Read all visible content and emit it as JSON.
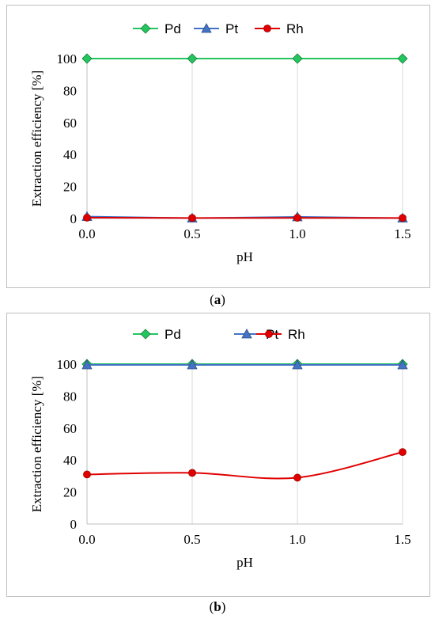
{
  "panels": [
    {
      "id": "a",
      "caption": {
        "open": "(",
        "letter": "a",
        "close": ")"
      },
      "chart_data": {
        "type": "line",
        "x": [
          0.0,
          0.5,
          1.0,
          1.5
        ],
        "x_tick_labels": [
          "0.0",
          "0.5",
          "1.0",
          "1.5"
        ],
        "xlabel": "pH",
        "ylabel": "Extraction efficiency [%]",
        "ylim": [
          0,
          100
        ],
        "y_ticks": [
          0,
          20,
          40,
          60,
          80,
          100
        ],
        "grid": "vertical",
        "legend": "top",
        "series": [
          {
            "name": "Pd",
            "values": [
              100,
              100,
              100,
              100
            ],
            "color": "#22c55e",
            "marker": "diamond",
            "smooth": false
          },
          {
            "name": "Pt",
            "values": [
              1.2,
              0.2,
              1.0,
              0.2
            ],
            "color": "#4472c4",
            "marker": "triangle",
            "smooth": false
          },
          {
            "name": "Rh",
            "values": [
              0.5,
              0.3,
              0.4,
              0.3
            ],
            "color": "#e00000",
            "marker": "circle",
            "smooth": false
          }
        ]
      }
    },
    {
      "id": "b",
      "caption": {
        "open": "(",
        "letter": "b",
        "close": ")"
      },
      "chart_data": {
        "type": "line",
        "x": [
          0.0,
          0.5,
          1.0,
          1.5
        ],
        "x_tick_labels": [
          "0.0",
          "0.5",
          "1.0",
          "1.5"
        ],
        "xlabel": "pH",
        "ylabel": "Extraction efficiency [%]",
        "ylim": [
          0,
          100
        ],
        "y_ticks": [
          0,
          20,
          40,
          60,
          80,
          100
        ],
        "grid": "vertical",
        "legend": "top",
        "series": [
          {
            "name": "Pd",
            "values": [
              100,
              100,
              100,
              100
            ],
            "color": "#22c55e",
            "marker": "diamond",
            "smooth": false
          },
          {
            "name": "Pt",
            "values": [
              99.5,
              99.5,
              99.5,
              99.5
            ],
            "color": "#4472c4",
            "marker": "triangle",
            "smooth": false
          },
          {
            "name": "Rh",
            "values": [
              31,
              32,
              29,
              45
            ],
            "color": "#e00000",
            "marker": "circle",
            "smooth": true
          }
        ]
      }
    }
  ]
}
